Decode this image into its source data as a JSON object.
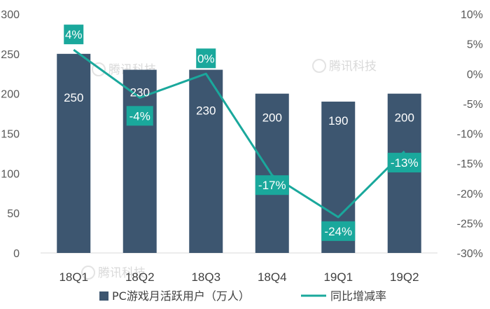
{
  "chart_data": {
    "type": "bar",
    "categories": [
      "18Q1",
      "18Q2",
      "18Q3",
      "18Q4",
      "19Q1",
      "19Q2"
    ],
    "series": [
      {
        "name": "PC游戏月活跃用户（万人）",
        "type": "bar",
        "axis": "left",
        "values": [
          250,
          230,
          230,
          200,
          190,
          200
        ],
        "labels": [
          "250",
          "230",
          "230",
          "200",
          "190",
          "200"
        ]
      },
      {
        "name": "同比增减率",
        "type": "line",
        "axis": "right",
        "values": [
          4,
          -4,
          0,
          -17,
          -24,
          -13
        ],
        "labels": [
          "4%",
          "-4%",
          "0%",
          "-17%",
          "-24%",
          "-13%"
        ]
      }
    ],
    "y_left": {
      "lim": [
        0,
        300
      ],
      "ticks": [
        "0",
        "50",
        "100",
        "150",
        "200",
        "250",
        "300"
      ]
    },
    "y_right": {
      "lim": [
        -30,
        10
      ],
      "ticks": [
        "-30%",
        "-25%",
        "-20%",
        "-15%",
        "-10%",
        "-5%",
        "0%",
        "5%",
        "10%"
      ]
    },
    "legend_position": "bottom",
    "grid": false,
    "colors": {
      "bar": "#3d5670",
      "line": "#1aa89c",
      "label_box": "#1aa89c"
    }
  },
  "watermark": {
    "text": "腾讯科技"
  }
}
